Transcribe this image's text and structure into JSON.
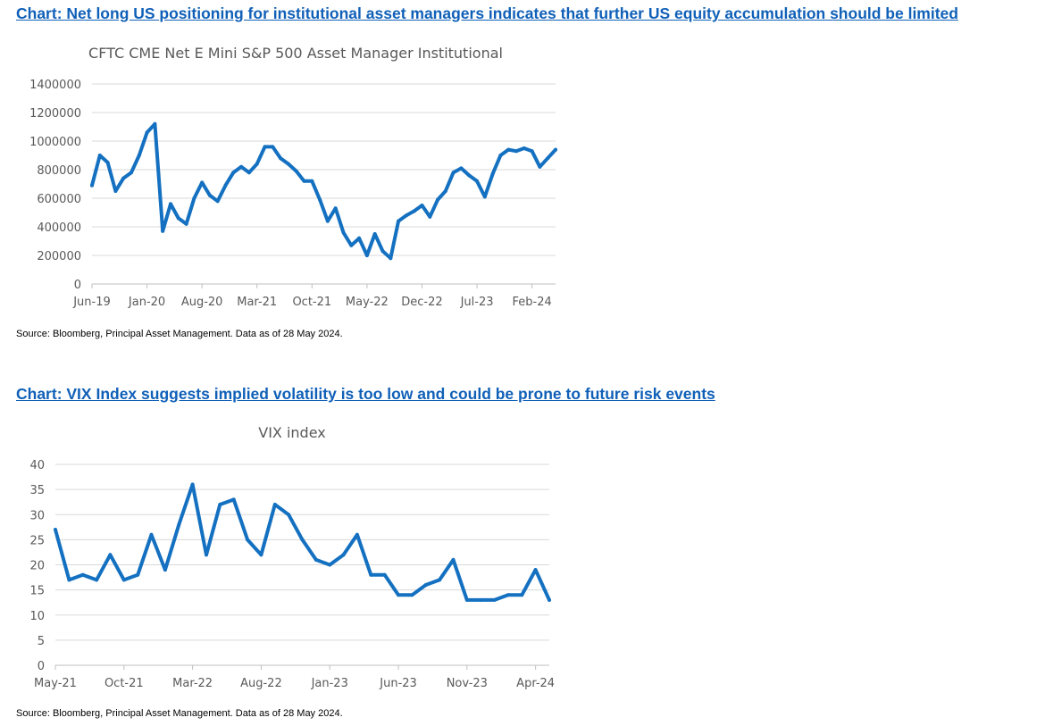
{
  "colors": {
    "heading": "#1060b8",
    "series": "#1470c0",
    "grid": "#d9d9d9",
    "axis_text": "#595959"
  },
  "section1": {
    "heading": "Chart: Net long US positioning for institutional asset managers indicates that further US equity accumulation should be limited",
    "source": "Source: Bloomberg, Principal Asset Management. Data as of 28 May 2024."
  },
  "section2": {
    "heading": "Chart: VIX Index suggests implied volatility is too low and could be prone to future risk events",
    "source": "Source: Bloomberg, Principal Asset Management. Data as of 28 May 2024."
  },
  "chart_data": [
    {
      "type": "line",
      "title": "CFTC CME Net E Mini S&P 500 Asset Manager Institutional",
      "xlabel": "",
      "ylabel": "",
      "ylim": [
        0,
        1400000
      ],
      "yticks": [
        0,
        200000,
        400000,
        600000,
        800000,
        1000000,
        1200000,
        1400000
      ],
      "xticks": [
        "Jun-19",
        "Jan-20",
        "Aug-20",
        "Mar-21",
        "Oct-21",
        "May-22",
        "Dec-22",
        "Jul-23",
        "Feb-24"
      ],
      "grid": true,
      "series": [
        {
          "x": [
            "2019-06",
            "2019-07",
            "2019-08",
            "2019-09",
            "2019-10",
            "2019-11",
            "2019-12",
            "2020-01",
            "2020-02",
            "2020-03",
            "2020-04",
            "2020-05",
            "2020-06",
            "2020-07",
            "2020-08",
            "2020-09",
            "2020-10",
            "2020-11",
            "2020-12",
            "2021-01",
            "2021-02",
            "2021-03",
            "2021-04",
            "2021-05",
            "2021-06",
            "2021-07",
            "2021-08",
            "2021-09",
            "2021-10",
            "2021-11",
            "2021-12",
            "2022-01",
            "2022-02",
            "2022-03",
            "2022-04",
            "2022-05",
            "2022-06",
            "2022-07",
            "2022-08",
            "2022-09",
            "2022-10",
            "2022-11",
            "2022-12",
            "2023-01",
            "2023-02",
            "2023-03",
            "2023-04",
            "2023-05",
            "2023-06",
            "2023-07",
            "2023-08",
            "2023-09",
            "2023-10",
            "2023-11",
            "2023-12",
            "2024-01",
            "2024-02",
            "2024-03",
            "2024-04",
            "2024-05"
          ],
          "values": [
            690000,
            900000,
            850000,
            650000,
            740000,
            780000,
            900000,
            1060000,
            1120000,
            370000,
            560000,
            460000,
            420000,
            600000,
            710000,
            620000,
            580000,
            690000,
            780000,
            820000,
            780000,
            840000,
            960000,
            960000,
            880000,
            840000,
            790000,
            720000,
            720000,
            590000,
            440000,
            530000,
            360000,
            270000,
            320000,
            200000,
            350000,
            230000,
            180000,
            440000,
            480000,
            510000,
            550000,
            470000,
            590000,
            650000,
            780000,
            810000,
            760000,
            720000,
            610000,
            770000,
            900000,
            940000,
            930000,
            950000,
            930000,
            820000,
            880000,
            940000
          ]
        }
      ]
    },
    {
      "type": "line",
      "title": "VIX index",
      "xlabel": "",
      "ylabel": "",
      "ylim": [
        0,
        40
      ],
      "yticks": [
        0,
        5,
        10,
        15,
        20,
        25,
        30,
        35,
        40
      ],
      "xticks": [
        "May-21",
        "Oct-21",
        "Mar-22",
        "Aug-22",
        "Jan-23",
        "Jun-23",
        "Nov-23",
        "Apr-24"
      ],
      "grid": true,
      "series": [
        {
          "x": [
            "2021-05",
            "2021-06",
            "2021-07",
            "2021-08",
            "2021-09",
            "2021-10",
            "2021-11",
            "2021-12",
            "2022-01",
            "2022-02",
            "2022-03",
            "2022-04",
            "2022-05",
            "2022-06",
            "2022-07",
            "2022-08",
            "2022-09",
            "2022-10",
            "2022-11",
            "2022-12",
            "2023-01",
            "2023-02",
            "2023-03",
            "2023-04",
            "2023-05",
            "2023-06",
            "2023-07",
            "2023-08",
            "2023-09",
            "2023-10",
            "2023-11",
            "2023-12",
            "2024-01",
            "2024-02",
            "2024-03",
            "2024-04",
            "2024-05"
          ],
          "values": [
            27,
            17,
            18,
            17,
            22,
            17,
            18,
            26,
            19,
            28,
            36,
            22,
            32,
            33,
            25,
            22,
            32,
            30,
            25,
            21,
            20,
            22,
            26,
            18,
            18,
            14,
            14,
            16,
            17,
            21,
            13,
            13,
            13,
            14,
            14,
            19,
            13
          ]
        }
      ]
    }
  ]
}
